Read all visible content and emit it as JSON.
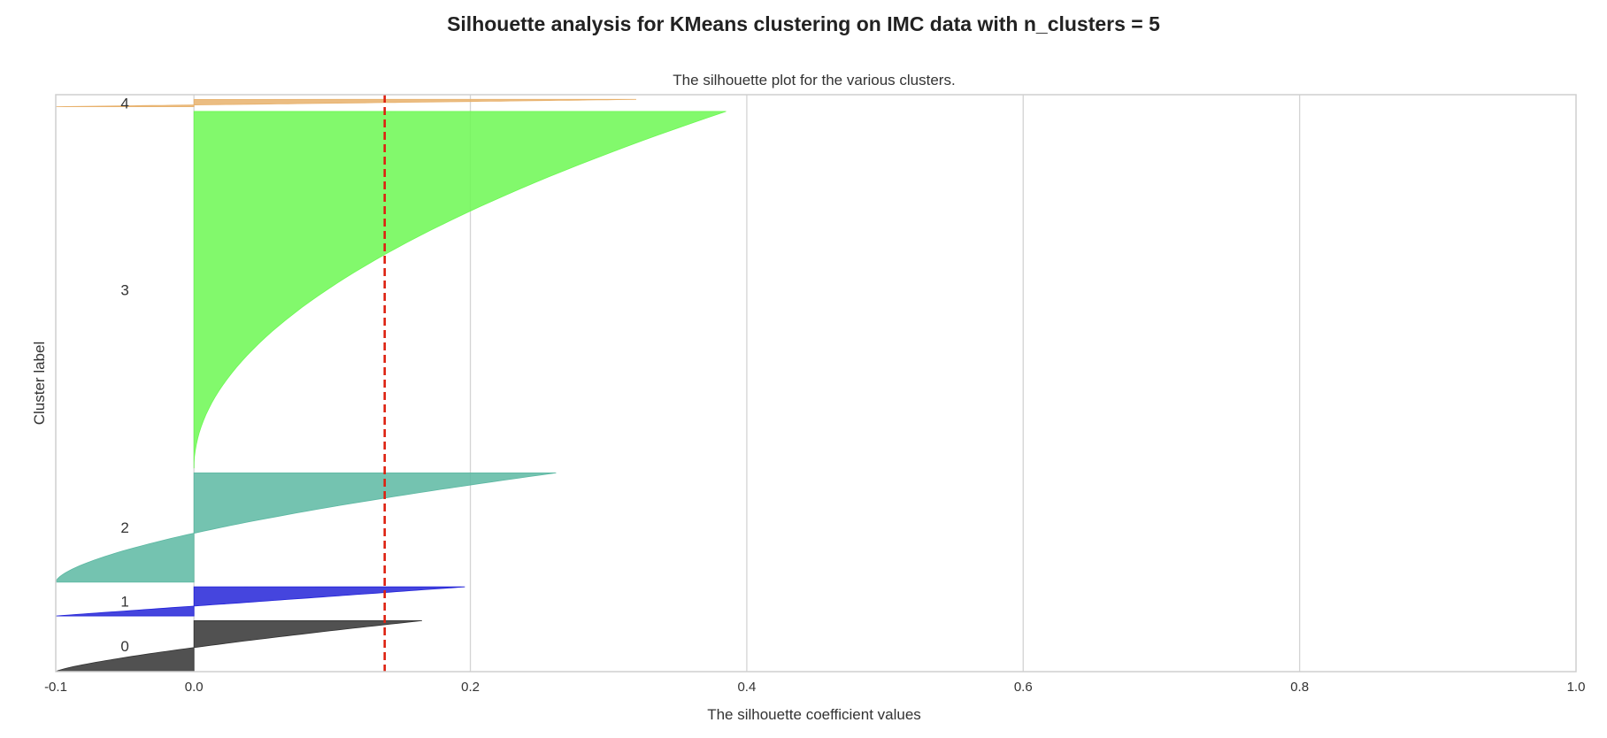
{
  "figure": {
    "suptitle": "Silhouette analysis for KMeans clustering on IMC data with n_clusters = 5"
  },
  "chart_data": {
    "type": "area",
    "subtitle": "The silhouette plot for the various clusters.",
    "xlabel": "The silhouette coefficient values",
    "ylabel": "Cluster label",
    "xlim": [
      -0.1,
      1.0
    ],
    "xticks": [
      -0.1,
      0.0,
      0.2,
      0.4,
      0.6,
      0.8,
      1.0
    ],
    "xtick_labels": [
      "-0.1",
      "0.0",
      "0.2",
      "0.4",
      "0.6",
      "0.8",
      "1.0"
    ],
    "yticks": [],
    "grid": "vertical",
    "average_silhouette_score": 0.138,
    "average_line_color": "#dd2211",
    "clusters": [
      {
        "label": "0",
        "size": 14,
        "color": "#333333",
        "max": 0.165,
        "min": -0.1,
        "shape": 1.3
      },
      {
        "label": "1",
        "size": 8,
        "color": "#2424d8",
        "max": 0.196,
        "min": -0.1,
        "shape": 1.0
      },
      {
        "label": "2",
        "size": 30,
        "color": "#5cb8a2",
        "max": 0.262,
        "min": -0.1,
        "shape": 1.6
      },
      {
        "label": "3",
        "size": 98,
        "color": "#6cf852",
        "max": 0.385,
        "min": 0.0,
        "shape": 2.0
      },
      {
        "label": "4",
        "size": 2,
        "color": "#e8b16c",
        "max": 0.32,
        "min": -0.1,
        "shape": 1.0
      }
    ]
  }
}
